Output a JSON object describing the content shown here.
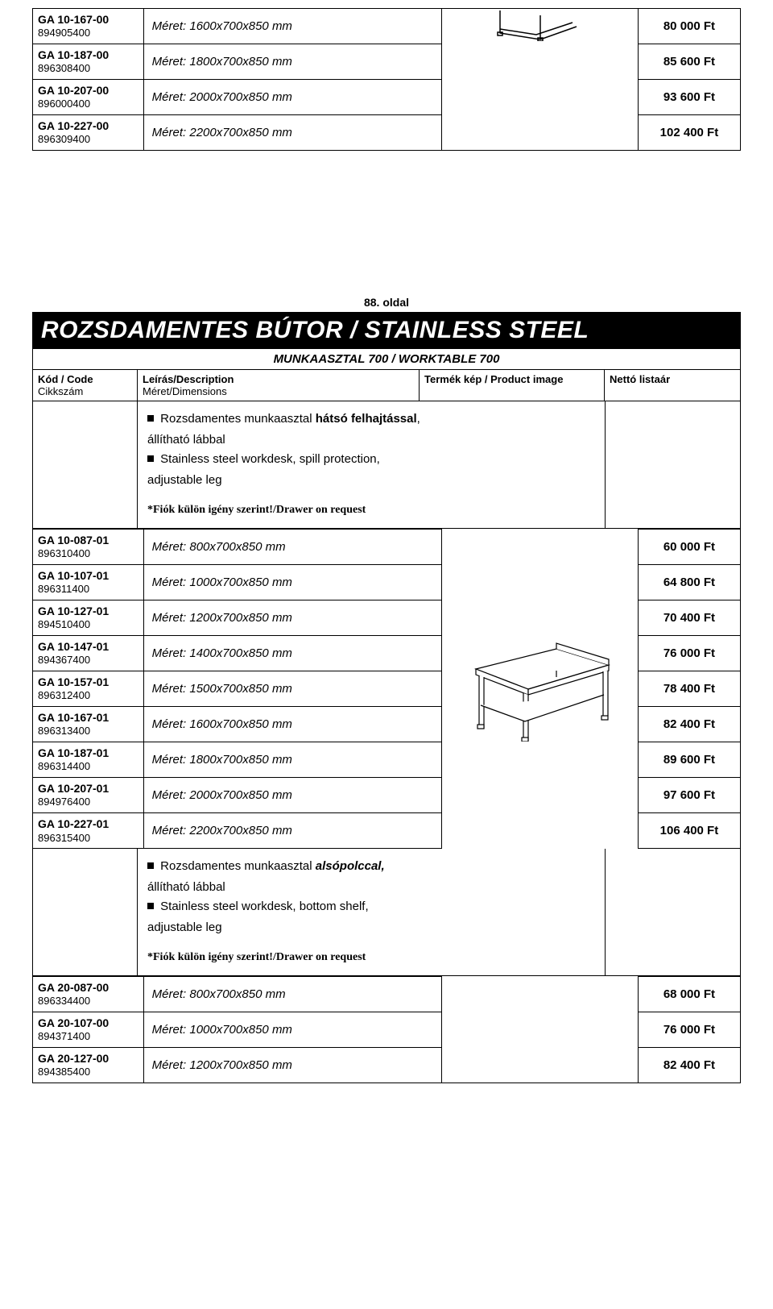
{
  "topTable": {
    "rows": [
      {
        "code1": "GA 10-167-00",
        "code2": "894905400",
        "desc": "Méret: 1600x700x850 mm",
        "price": "80 000 Ft"
      },
      {
        "code1": "GA 10-187-00",
        "code2": "896308400",
        "desc": "Méret: 1800x700x850 mm",
        "price": "85 600 Ft"
      },
      {
        "code1": "GA 10-207-00",
        "code2": "896000400",
        "desc": "Méret: 2000x700x850 mm",
        "price": "93 600 Ft"
      },
      {
        "code1": "GA 10-227-00",
        "code2": "896309400",
        "desc": "Méret: 2200x700x850 mm",
        "price": "102 400 Ft"
      }
    ]
  },
  "pageNum": "88. oldal",
  "banner": "ROZSDAMENTES BÚTOR / STAINLESS STEEL",
  "subtitle": "MUNKAASZTAL 700 / WORKTABLE 700",
  "headers": {
    "code": "Kód / Code",
    "codeSub": "Cikkszám",
    "desc": "Leírás/Description",
    "descSub": "Méret/Dimensions",
    "img": "Termék kép / Product image",
    "price": "Nettó listaár"
  },
  "section1": {
    "line1_pre": "Rozsdamentes munkaasztal ",
    "line1_bold": "hátsó felhajtással",
    "line1_post": ",",
    "line2": "állítható lábbal",
    "line3_pre": "Stainless steel workdesk, spill protection,",
    "line4": "adjustable leg",
    "drawer": "*Fiók külön igény szerint!/Drawer on request",
    "rows": [
      {
        "code1": "GA 10-087-01",
        "code2": "896310400",
        "desc": "Méret:  800x700x850 mm",
        "price": "60 000 Ft"
      },
      {
        "code1": "GA 10-107-01",
        "code2": "896311400",
        "desc": "Méret: 1000x700x850 mm",
        "price": "64 800 Ft"
      },
      {
        "code1": "GA 10-127-01",
        "code2": "894510400",
        "desc": "Méret: 1200x700x850 mm",
        "price": "70 400 Ft"
      },
      {
        "code1": "GA 10-147-01",
        "code2": "894367400",
        "desc": "Méret: 1400x700x850 mm",
        "price": "76 000 Ft"
      },
      {
        "code1": "GA 10-157-01",
        "code2": "896312400",
        "desc": "Méret: 1500x700x850 mm",
        "price": "78 400 Ft"
      },
      {
        "code1": "GA 10-167-01",
        "code2": "896313400",
        "desc": "Méret: 1600x700x850 mm",
        "price": "82 400 Ft"
      },
      {
        "code1": "GA 10-187-01",
        "code2": "896314400",
        "desc": "Méret: 1800x700x850 mm",
        "price": "89 600 Ft"
      },
      {
        "code1": "GA 10-207-01",
        "code2": "894976400",
        "desc": "Méret: 2000x700x850 mm",
        "price": "97 600 Ft"
      },
      {
        "code1": "GA 10-227-01",
        "code2": "896315400",
        "desc": "Méret: 2200x700x850 mm",
        "price": "106 400 Ft"
      }
    ]
  },
  "section2": {
    "line1_pre": "Rozsdamentes munkaasztal ",
    "line1_bold": "alsópolccal,",
    "line2": "állítható lábbal",
    "line3_pre": "Stainless steel workdesk, bottom shelf,",
    "line4": "adjustable leg",
    "drawer": "*Fiók külön igény szerint!/Drawer on request",
    "rows": [
      {
        "code1": "GA 20-087-00",
        "code2": "896334400",
        "desc": "Méret:  800x700x850 mm",
        "price": "68 000 Ft"
      },
      {
        "code1": "GA 20-107-00",
        "code2": "894371400",
        "desc": "Méret: 1000x700x850 mm",
        "price": "76 000 Ft"
      },
      {
        "code1": "GA 20-127-00",
        "code2": "894385400",
        "desc": "Méret: 1200x700x850 mm",
        "price": "82 400 Ft"
      }
    ]
  }
}
